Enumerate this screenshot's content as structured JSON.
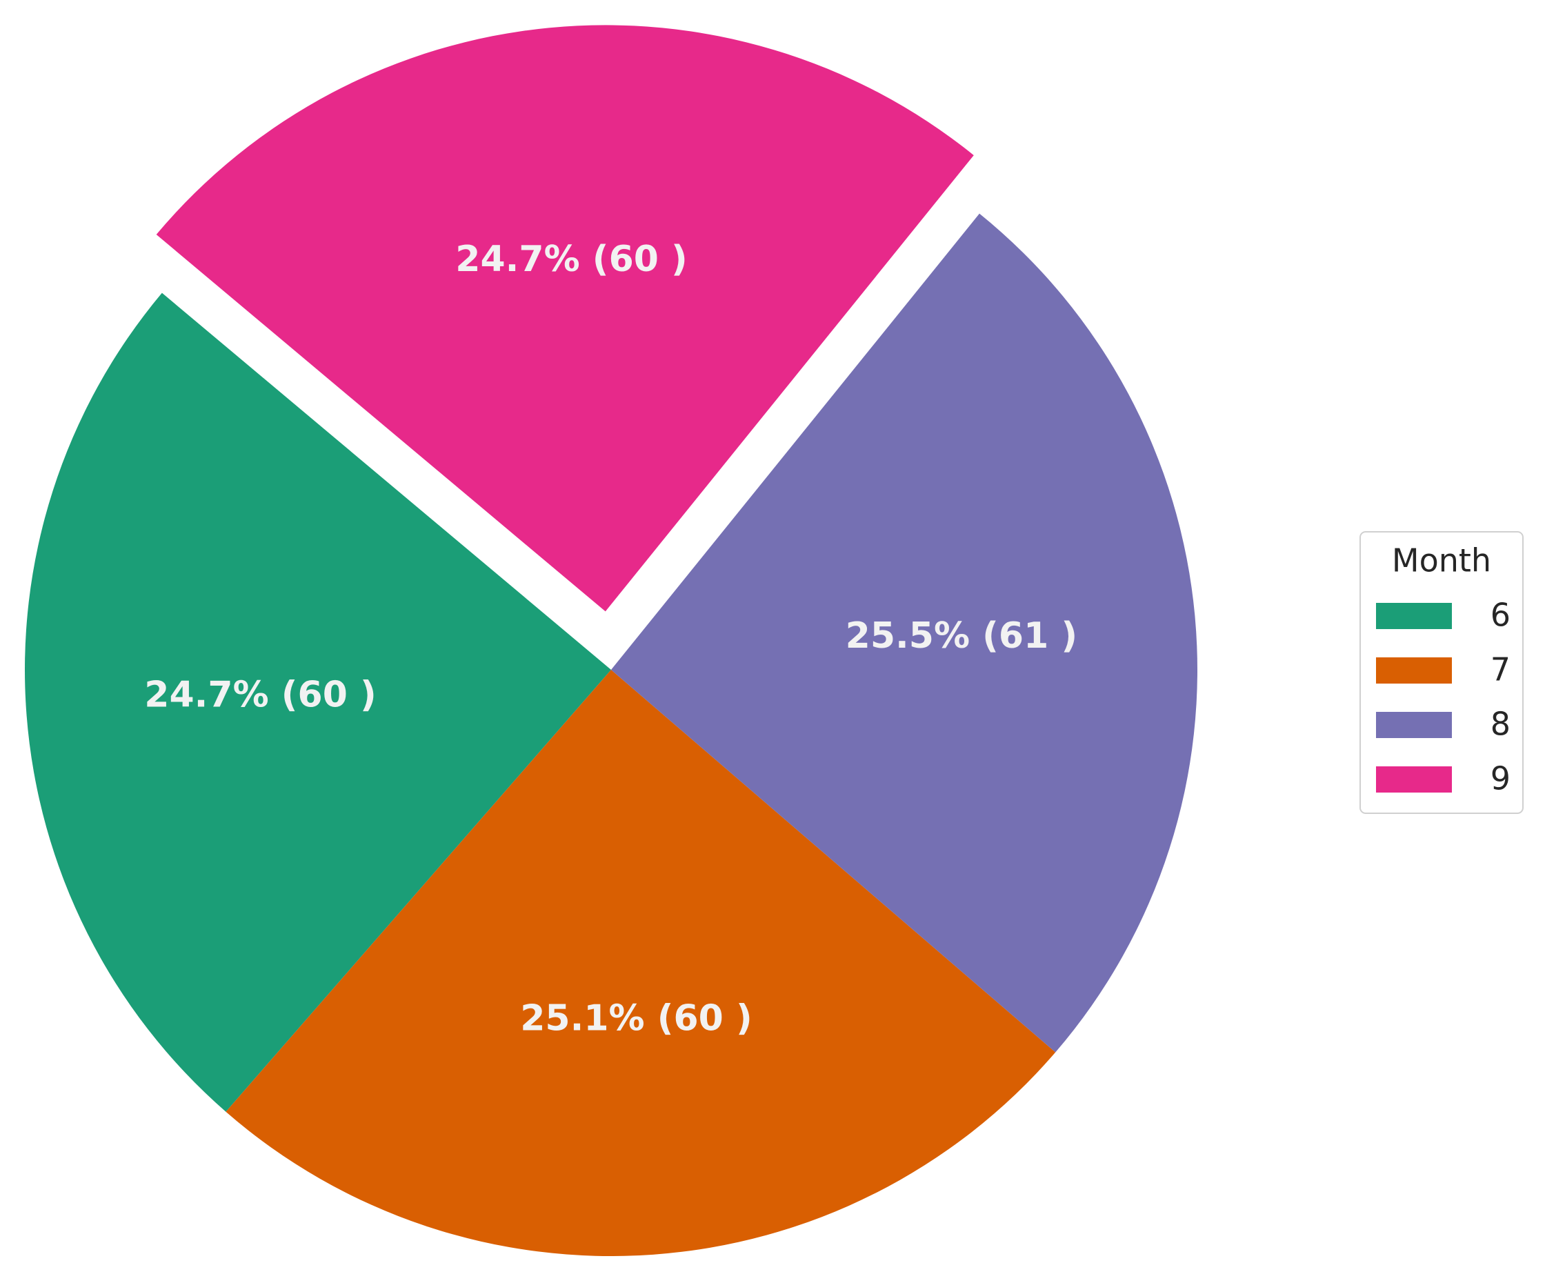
{
  "chart_data": {
    "type": "pie",
    "categories": [
      "6",
      "7",
      "8",
      "9"
    ],
    "values": [
      24.7,
      25.1,
      25.5,
      24.7
    ],
    "value_labels": [
      "24.7% (60 )",
      "25.1% (60 )",
      "25.5% (61 )",
      "24.7% (60 )"
    ],
    "colors": [
      "#1b9e77",
      "#d95f02",
      "#7570b3",
      "#e7298a"
    ],
    "legend_title": "Month",
    "legend": "right"
  }
}
